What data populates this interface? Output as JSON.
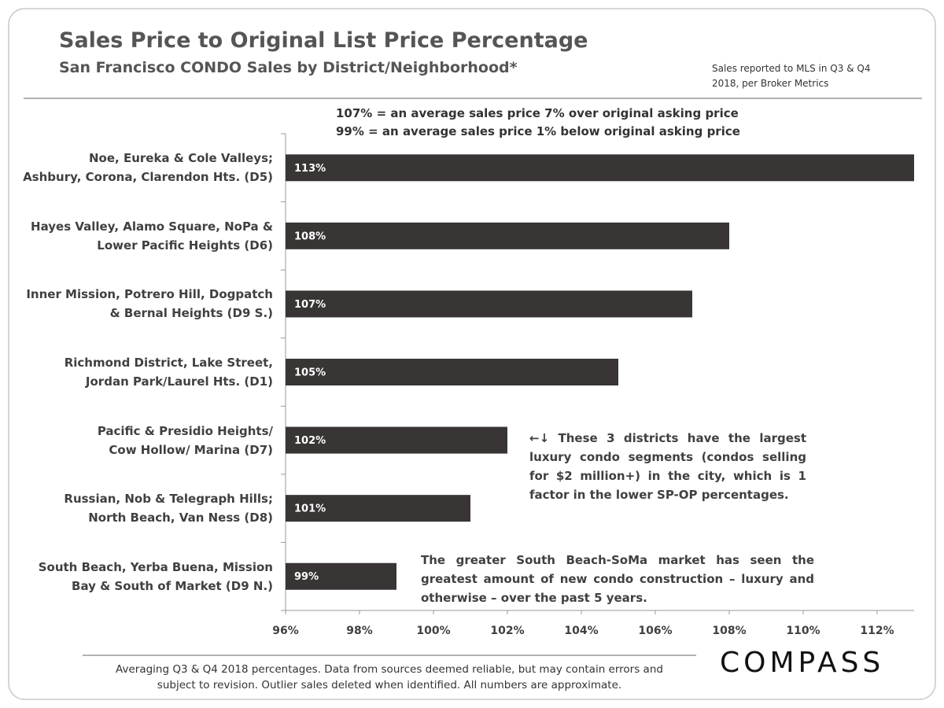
{
  "chart_data": {
    "type": "hbar",
    "title": "Sales Price to Original List Price Percentage",
    "subtitle": "San Francisco CONDO Sales by District/Neighborhood*",
    "source_note": "Sales reported to MLS in Q3 & Q4 2018, per Broker Metrics",
    "notes": [
      "107% = an average sales price 7% over original asking price",
      "99% = an average sales price 1% below original asking price"
    ],
    "categories": [
      "Noe, Eureka & Cole Valleys;\nAshbury, Corona, Clarendon Hts. (D5)",
      "Hayes Valley, Alamo Square, NoPa &\nLower Pacific Heights (D6)",
      "Inner Mission, Potrero Hill, Dogpatch\n& Bernal Heights (D9 S.)",
      "Richmond District, Lake Street,\nJordan Park/Laurel Hts. (D1)",
      "Pacific & Presidio Heights/\nCow Hollow/ Marina (D7)",
      "Russian, Nob & Telegraph Hills;\nNorth Beach, Van Ness (D8)",
      "South Beach, Yerba Buena, Mission\nBay & South of Market (D9 N.)"
    ],
    "values": [
      113,
      108,
      107,
      105,
      102,
      101,
      99
    ],
    "value_labels": [
      "113%",
      "108%",
      "107%",
      "105%",
      "102%",
      "101%",
      "99%"
    ],
    "color": "#383534",
    "xlim": [
      96,
      113
    ],
    "xticks": [
      {
        "value": 96,
        "label": "96%"
      },
      {
        "value": 98,
        "label": "98%"
      },
      {
        "value": 100,
        "label": "100%"
      },
      {
        "value": 102,
        "label": "102%"
      },
      {
        "value": 104,
        "label": "104%"
      },
      {
        "value": 106,
        "label": "106%"
      },
      {
        "value": 108,
        "label": "108%"
      },
      {
        "value": 110,
        "label": "110%"
      },
      {
        "value": 112,
        "label": "112%"
      }
    ],
    "annotations": [
      "←↓ These 3 districts have the largest luxury condo segments (condos selling for $2 million+) in the city, which is 1 factor in the lower SP-OP percentages.",
      "The greater South Beach-SoMa market has seen the greatest amount of new condo construction – luxury and otherwise – over the past 5 years."
    ],
    "footnote": "Averaging Q3 & Q4 2018 percentages. Data from sources deemed reliable, but may contain errors and subject to revision. Outlier sales deleted  when identified. All numbers are approximate.",
    "logo": "COMPASS"
  }
}
